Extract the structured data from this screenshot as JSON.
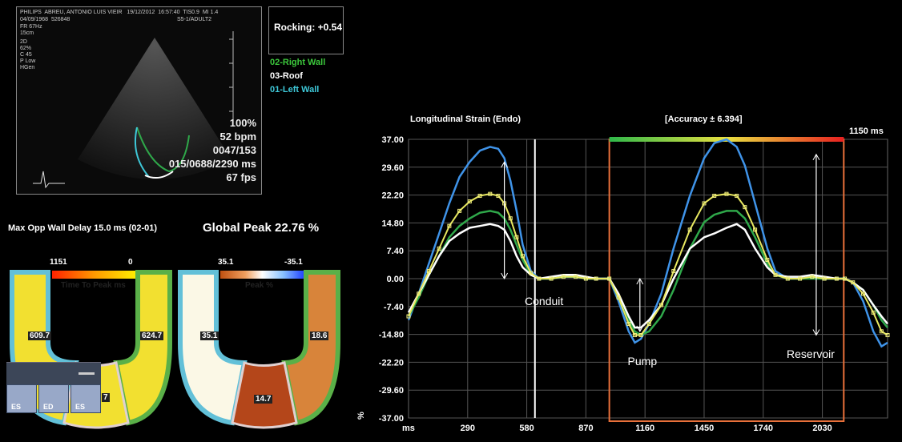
{
  "echo_header": {
    "brand": "PHILIPS",
    "patient": "ABREU, ANTONIO LUIS VIEIR",
    "date": "19/12/2012",
    "time": "16:57:40",
    "tis": "TIS0.9",
    "mi": "MI 1.4",
    "dob": "04/09/1968",
    "id": "526848",
    "probe": "S5-1/ADULT2",
    "fr": "FR 67Hz",
    "depth": "15cm",
    "params": [
      "2D",
      "62%",
      "C 45",
      "P Low",
      "HGen"
    ]
  },
  "echo_readouts": [
    "100%",
    "52 bpm",
    "0047/153",
    "015/0688/2290 ms",
    "67 fps"
  ],
  "rocking": "Rocking: +0.54",
  "legend": [
    {
      "label": "02-Right Wall",
      "color": "#3cc83c"
    },
    {
      "label": "03-Roof",
      "color": "#ffffff"
    },
    {
      "label": "01-Left Wall",
      "color": "#3ec8d8"
    }
  ],
  "max_opp_wall_delay": "Max Opp Wall Delay 15.0 ms (02-01)",
  "global_peak": "Global Peak 22.76 %",
  "ttp_map": {
    "scale_max": "1151",
    "scale_min": "0",
    "title": "Time To Peak ms",
    "left": "609.7",
    "right": "624.7",
    "bottom": "7"
  },
  "peak_map": {
    "scale_max": "35.1",
    "scale_min": "-35.1",
    "title": "Peak %",
    "left": "35.1",
    "right": "18.6",
    "bottom": "14.7"
  },
  "toolbar_buttons": [
    "ES",
    "ED",
    "ES"
  ],
  "chart_data": {
    "type": "line",
    "title": "Longitudinal Strain (Endo)",
    "accuracy": "[Accuracy ± 6.394]",
    "duration": "1150 ms",
    "xlabel": "ms",
    "ylabel": "%",
    "x_ticks": [
      "290",
      "580",
      "870",
      "1160",
      "1450",
      "1740",
      "2030"
    ],
    "y_ticks": [
      "37.00",
      "29.60",
      "22.20",
      "14.80",
      "7.40",
      "0.00",
      "-7.40",
      "-14.80",
      "-22.20",
      "-29.60",
      "-37.00"
    ],
    "xlim": [
      0,
      2350
    ],
    "ylim": [
      -37,
      37
    ],
    "cursor_x": 620,
    "selection": [
      985,
      2135
    ],
    "annotations": [
      {
        "text": "Conduit",
        "x": 570,
        "y": -7
      },
      {
        "text": "Pump",
        "x": 1075,
        "y": -23
      },
      {
        "text": "Reservoir",
        "x": 1855,
        "y": -21
      }
    ],
    "arrows": [
      {
        "x": 470,
        "y1": 31,
        "y2": 0
      },
      {
        "x": 1135,
        "y1": 0,
        "y2": -14
      },
      {
        "x": 2000,
        "y1": 33,
        "y2": -15
      }
    ],
    "series": [
      {
        "name": "01-Left Wall",
        "color": "#3f93e8",
        "x": [
          0,
          50,
          100,
          150,
          200,
          250,
          300,
          350,
          400,
          440,
          470,
          500,
          530,
          560,
          600,
          640,
          700,
          760,
          820,
          870,
          920,
          985,
          1030,
          1080,
          1110,
          1140,
          1180,
          1240,
          1300,
          1380,
          1450,
          1500,
          1560,
          1610,
          1650,
          1700,
          1760,
          1800,
          1860,
          1920,
          1980,
          2040,
          2100,
          2140,
          2180,
          2230,
          2280,
          2320,
          2350
        ],
        "values": [
          -11,
          -4,
          4,
          12,
          20,
          27,
          31,
          34,
          35,
          34.5,
          32,
          26,
          18,
          9,
          2,
          0,
          0,
          0.5,
          0.5,
          0,
          0,
          0,
          -6,
          -14,
          -17,
          -16,
          -12,
          -4,
          8,
          22,
          32,
          36,
          37,
          35,
          30,
          20,
          8,
          2,
          0,
          0,
          0.5,
          0,
          0,
          0,
          -1,
          -6,
          -14,
          -18,
          -17
        ]
      },
      {
        "name": "02-Right Wall",
        "color": "#2fa84a",
        "x": [
          0,
          50,
          100,
          150,
          200,
          250,
          300,
          350,
          400,
          440,
          470,
          500,
          530,
          560,
          600,
          640,
          700,
          760,
          820,
          870,
          920,
          985,
          1030,
          1080,
          1110,
          1140,
          1180,
          1240,
          1300,
          1380,
          1450,
          1500,
          1560,
          1610,
          1650,
          1700,
          1760,
          1800,
          1860,
          1920,
          1980,
          2040,
          2100,
          2140,
          2180,
          2230,
          2280,
          2320,
          2350
        ],
        "values": [
          -10,
          -5,
          1,
          6,
          11,
          14,
          16,
          17.5,
          18,
          17.5,
          16,
          13,
          9,
          5,
          1,
          0,
          0,
          0.5,
          0.5,
          0,
          0,
          0,
          -5,
          -11,
          -14,
          -15,
          -14,
          -10,
          -3,
          8,
          15,
          17,
          18,
          18,
          16,
          11,
          4,
          1,
          0,
          0,
          0,
          0,
          0,
          0,
          -1,
          -3,
          -7,
          -11,
          -13
        ]
      },
      {
        "name": "03-Roof",
        "color": "#ffffff",
        "x": [
          0,
          50,
          100,
          150,
          200,
          250,
          300,
          350,
          400,
          440,
          470,
          500,
          530,
          560,
          600,
          640,
          700,
          760,
          820,
          870,
          920,
          985,
          1030,
          1080,
          1110,
          1140,
          1180,
          1240,
          1300,
          1380,
          1450,
          1500,
          1560,
          1610,
          1650,
          1700,
          1760,
          1800,
          1860,
          1920,
          1980,
          2040,
          2100,
          2140,
          2180,
          2230,
          2280,
          2320,
          2350
        ],
        "values": [
          -9,
          -4,
          1,
          6,
          10,
          12,
          13.5,
          14,
          14.5,
          14,
          13,
          10,
          6,
          3,
          1,
          0,
          0.5,
          1,
          1,
          0.5,
          0,
          0,
          -4,
          -10,
          -13,
          -13,
          -11,
          -7,
          0,
          8,
          11,
          12,
          13.5,
          14.5,
          13,
          8,
          3,
          1,
          0.5,
          0.5,
          1,
          0.5,
          0,
          0,
          -1,
          -3,
          -7,
          -10,
          -12
        ]
      },
      {
        "name": "Global",
        "color": "#e8e860",
        "x": [
          0,
          50,
          100,
          150,
          200,
          250,
          300,
          350,
          400,
          440,
          470,
          500,
          530,
          560,
          600,
          640,
          700,
          760,
          820,
          870,
          920,
          985,
          1030,
          1080,
          1110,
          1140,
          1180,
          1240,
          1300,
          1380,
          1450,
          1500,
          1560,
          1610,
          1650,
          1700,
          1760,
          1800,
          1860,
          1920,
          1980,
          2040,
          2100,
          2140,
          2180,
          2230,
          2280,
          2320,
          2350
        ],
        "values": [
          -10,
          -4,
          2,
          8,
          14,
          18,
          20.5,
          22,
          22.5,
          22,
          20,
          16,
          11,
          6,
          1.5,
          0,
          0,
          0.5,
          0.5,
          0,
          0,
          0,
          -5,
          -12,
          -15,
          -15,
          -12,
          -7,
          2,
          13,
          20,
          22,
          22.5,
          22,
          19,
          13,
          5,
          1,
          0,
          0,
          0.5,
          0,
          0,
          0,
          -1,
          -4,
          -9,
          -14,
          -15
        ]
      }
    ]
  }
}
